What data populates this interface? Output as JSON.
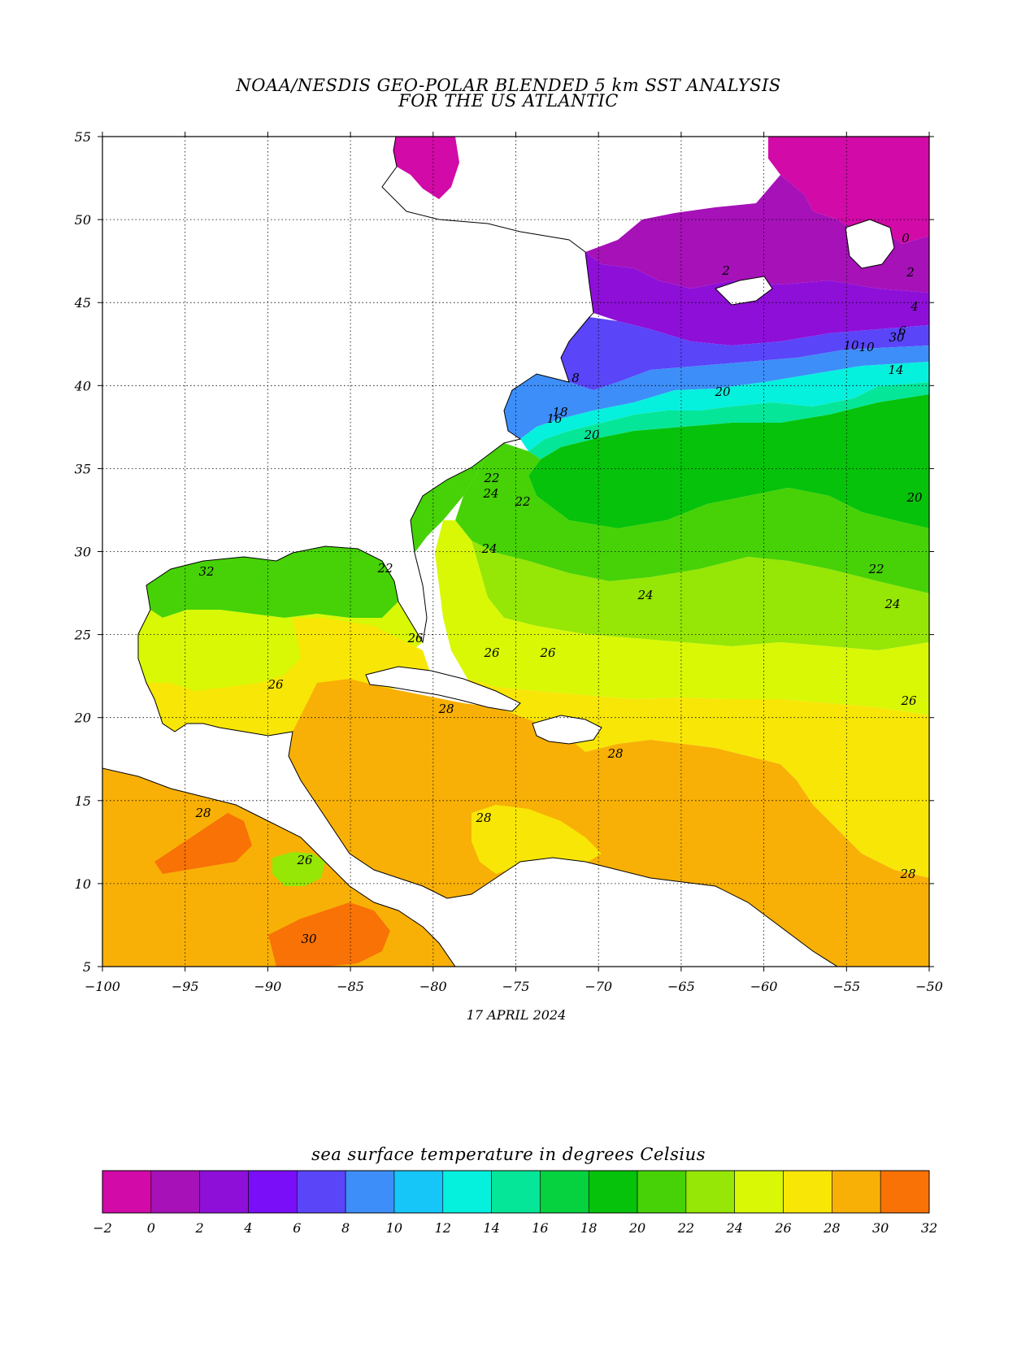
{
  "title": {
    "line1": "NOAA/NESDIS GEO-POLAR BLENDED 5 km SST ANALYSIS",
    "line2": "FOR THE US ATLANTIC"
  },
  "date": "17 APRIL 2024",
  "axes": {
    "x_ticks": [
      "−100",
      "−95",
      "−90",
      "−85",
      "−80",
      "−75",
      "−70",
      "−65",
      "−60",
      "−55",
      "−50"
    ],
    "y_ticks": [
      "55",
      "50",
      "45",
      "40",
      "35",
      "30",
      "25",
      "20",
      "15",
      "10",
      "5"
    ],
    "lon_range": [
      -100,
      -50
    ],
    "lat_range": [
      5,
      55
    ],
    "grid": "dotted"
  },
  "contour_labels": [
    {
      "text": "0"
    },
    {
      "text": "2"
    },
    {
      "text": "2"
    },
    {
      "text": "4"
    },
    {
      "text": "6"
    },
    {
      "text": "8"
    },
    {
      "text": "10"
    },
    {
      "text": "10"
    },
    {
      "text": "14"
    },
    {
      "text": "16"
    },
    {
      "text": "18"
    },
    {
      "text": "20"
    },
    {
      "text": "20"
    },
    {
      "text": "20"
    },
    {
      "text": "22"
    },
    {
      "text": "22"
    },
    {
      "text": "22"
    },
    {
      "text": "22"
    },
    {
      "text": "24"
    },
    {
      "text": "24"
    },
    {
      "text": "24"
    },
    {
      "text": "24"
    },
    {
      "text": "26"
    },
    {
      "text": "26"
    },
    {
      "text": "26"
    },
    {
      "text": "26"
    },
    {
      "text": "26"
    },
    {
      "text": "26"
    },
    {
      "text": "28"
    },
    {
      "text": "28"
    },
    {
      "text": "28"
    },
    {
      "text": "28"
    },
    {
      "text": "28"
    },
    {
      "text": "30"
    },
    {
      "text": "30"
    },
    {
      "text": "32"
    }
  ],
  "colorbar": {
    "title": "sea surface temperature in degrees Celsius",
    "labels": [
      "−2",
      "0",
      "2",
      "4",
      "6",
      "8",
      "10",
      "12",
      "14",
      "16",
      "18",
      "20",
      "22",
      "24",
      "26",
      "28",
      "30",
      "32"
    ],
    "colors": [
      "#d10aa8",
      "#a611b8",
      "#8e0fd8",
      "#7a0ef8",
      "#5a45f8",
      "#3d8ef8",
      "#16c6f8",
      "#06f0de",
      "#06e698",
      "#06d240",
      "#06c20a",
      "#46d206",
      "#96e606",
      "#d8f806",
      "#f8e606",
      "#f8b006",
      "#f87206"
    ]
  }
}
